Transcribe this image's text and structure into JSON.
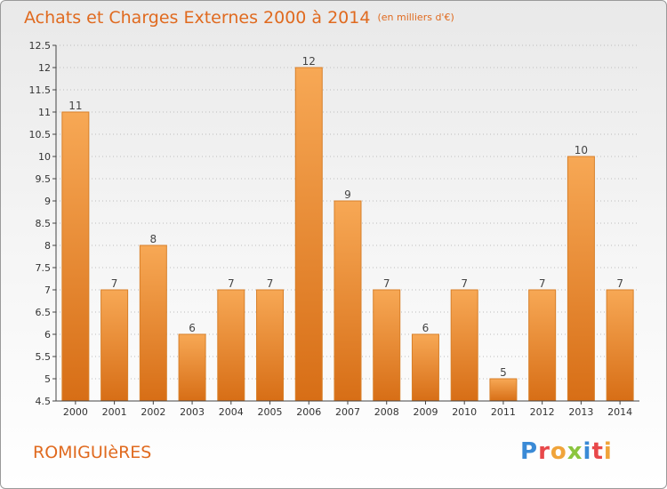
{
  "header": {
    "title": "Achats et Charges Externes 2000 à 2014",
    "subtitle": "(en milliers d'€)"
  },
  "footer": {
    "commune": "ROMIGUIèRES",
    "brand": "Proxiti"
  },
  "colors": {
    "accent": "#e06a1f",
    "bar_top": "#f7a855",
    "bar_bottom": "#d76e16",
    "logo_P": "#3a8ad6",
    "logo_r": "#e8484a",
    "logo_o": "#f0a43a",
    "logo_x": "#8bc53f",
    "logo_i": "#3a8ad6",
    "logo_t": "#e8484a",
    "logo_i2": "#f0a43a"
  },
  "chart_data": {
    "type": "bar",
    "title": "Achats et Charges Externes 2000 à 2014",
    "subtitle": "(en milliers d'€)",
    "xlabel": "",
    "ylabel": "",
    "categories": [
      "2000",
      "2001",
      "2002",
      "2003",
      "2004",
      "2005",
      "2006",
      "2007",
      "2008",
      "2009",
      "2010",
      "2011",
      "2012",
      "2013",
      "2014"
    ],
    "values": [
      11,
      7,
      8,
      6,
      7,
      7,
      12,
      9,
      7,
      6,
      7,
      5,
      7,
      10,
      7
    ],
    "ylim": [
      4.5,
      12.5
    ],
    "yticks": [
      4.5,
      5,
      5.5,
      6,
      6.5,
      7,
      7.5,
      8,
      8.5,
      9,
      9.5,
      10,
      10.5,
      11,
      11.5,
      12,
      12.5
    ],
    "grid": "horizontal-dotted"
  }
}
